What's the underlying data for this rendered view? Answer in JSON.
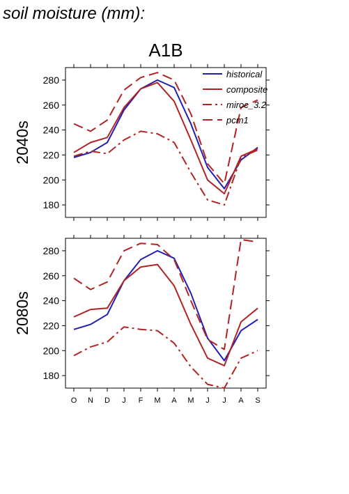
{
  "page_title": "soil moisture (mm):",
  "chart_data": {
    "type": "line",
    "title": "A1B",
    "categories": [
      "O",
      "N",
      "D",
      "J",
      "F",
      "M",
      "A",
      "M",
      "J",
      "J",
      "A",
      "S"
    ],
    "ylim": [
      170,
      290
    ],
    "yticks": [
      180,
      200,
      220,
      240,
      260,
      280
    ],
    "grid": false,
    "legend_position": "top-right",
    "legend": [
      {
        "name": "historical",
        "color": "#1f1fb4",
        "dash": "solid"
      },
      {
        "name": "composite",
        "color": "#b22222",
        "dash": "solid"
      },
      {
        "name": "miroc_3.2",
        "color": "#b22222",
        "dash": "dashdot"
      },
      {
        "name": "pcm1",
        "color": "#b22222",
        "dash": "dash"
      }
    ],
    "panels": [
      {
        "label": "2040s",
        "series": [
          {
            "name": "historical",
            "color": "#1f1fb4",
            "dash": "solid",
            "values": [
              218,
              222,
              230,
              256,
              273,
              280,
              274,
              245,
              210,
              193,
              216,
              226
            ]
          },
          {
            "name": "composite",
            "color": "#b22222",
            "dash": "solid",
            "values": [
              222,
              230,
              234,
              258,
              273,
              278,
              263,
              232,
              200,
              189,
              219,
              225
            ]
          },
          {
            "name": "miroc_3.2",
            "color": "#b22222",
            "dash": "dashdot",
            "values": [
              219,
              223,
              221,
              232,
              239,
              237,
              230,
              206,
              184,
              180,
              218,
              224
            ]
          },
          {
            "name": "pcm1",
            "color": "#b22222",
            "dash": "dash",
            "values": [
              245,
              239,
              248,
              272,
              282,
              286,
              280,
              253,
              213,
              197,
              258,
              264
            ]
          }
        ]
      },
      {
        "label": "2080s",
        "series": [
          {
            "name": "historical",
            "color": "#1f1fb4",
            "dash": "solid",
            "values": [
              217,
              221,
              229,
              256,
              273,
              280,
              274,
              246,
              210,
              192,
              216,
              225
            ]
          },
          {
            "name": "composite",
            "color": "#b22222",
            "dash": "solid",
            "values": [
              227,
              233,
              234,
              256,
              267,
              269,
              252,
              221,
              194,
              188,
              223,
              234
            ]
          },
          {
            "name": "miroc_3.2",
            "color": "#b22222",
            "dash": "dashdot",
            "values": [
              196,
              203,
              207,
              219,
              217,
              216,
              206,
              187,
              173,
              170,
              194,
              200
            ]
          },
          {
            "name": "pcm1",
            "color": "#b22222",
            "dash": "dash",
            "values": [
              258,
              249,
              255,
              280,
              286,
              285,
              273,
              240,
              209,
              201,
              289,
              287
            ]
          }
        ]
      }
    ]
  }
}
